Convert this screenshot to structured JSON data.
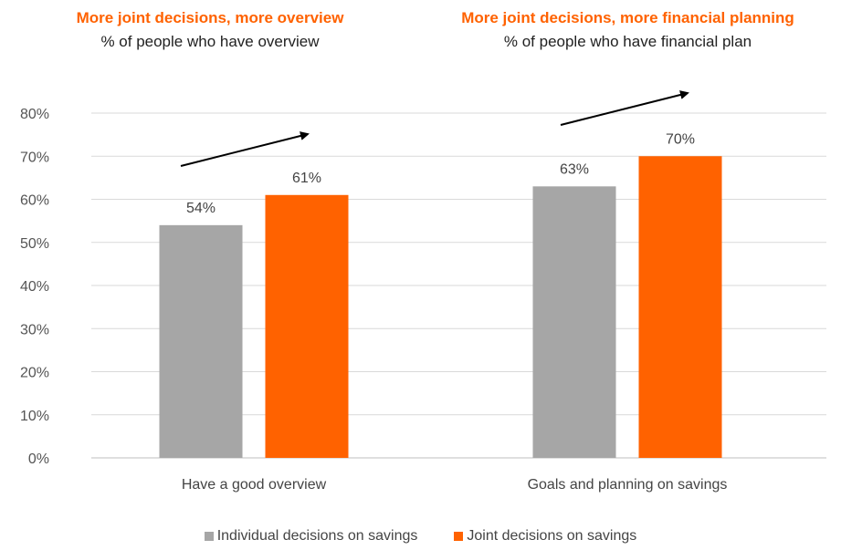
{
  "titles": [
    {
      "title": "More joint decisions, more overview",
      "subtitle": "% of people who have overview"
    },
    {
      "title": "More joint decisions, more financial planning",
      "subtitle": "% of people who have financial plan"
    }
  ],
  "chart_data": {
    "type": "bar",
    "categories": [
      "Have a good overview",
      "Goals and planning on savings"
    ],
    "series": [
      {
        "name": "Individual decisions on savings",
        "values": [
          54,
          63
        ],
        "labels": [
          "54%",
          "63%"
        ],
        "color": "#A6A6A6"
      },
      {
        "name": "Joint decisions on savings",
        "values": [
          61,
          70
        ],
        "labels": [
          "61%",
          "70%"
        ],
        "color": "#FF6200"
      }
    ],
    "ylim": [
      0,
      80
    ],
    "yticks": [
      "0%",
      "10%",
      "20%",
      "30%",
      "40%",
      "50%",
      "60%",
      "70%",
      "80%"
    ],
    "grid": true,
    "legend_position": "bottom",
    "annotations": [
      "upward trend arrow above each category"
    ]
  }
}
